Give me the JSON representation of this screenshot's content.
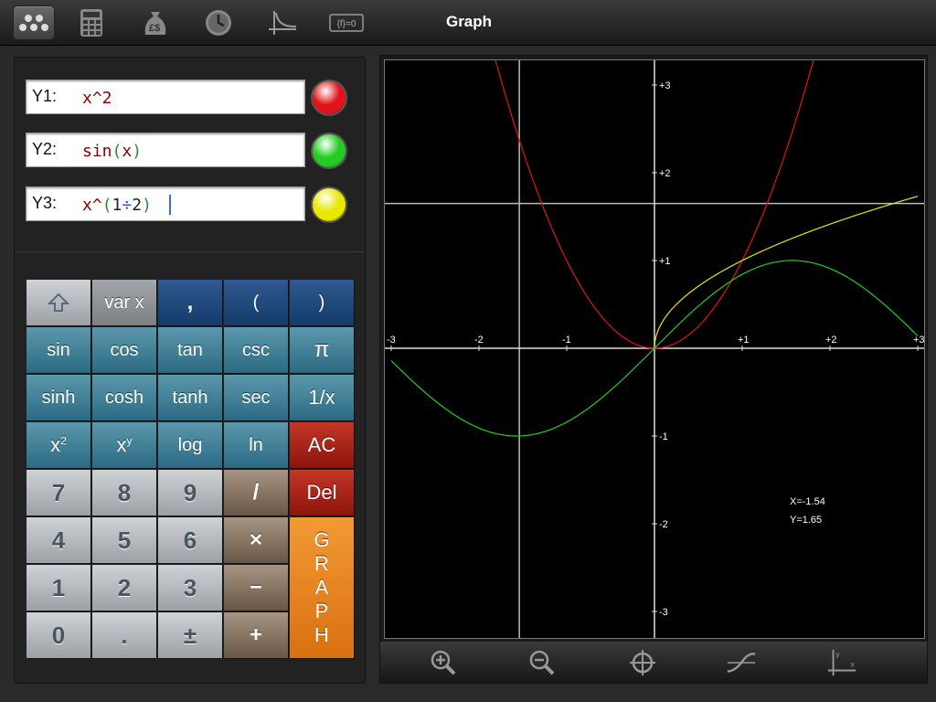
{
  "app": {
    "title": "Graph"
  },
  "toolbar": {
    "icons": [
      "apps-icon",
      "calculator-icon",
      "currency-exchange-icon",
      "clock-icon",
      "graph-icon",
      "equation-solver-icon"
    ],
    "solver_label": "{f}=0"
  },
  "equations": [
    {
      "label": "Y1:",
      "parts": [
        {
          "t": "x^2",
          "c": "r"
        }
      ],
      "color": "#e0141a"
    },
    {
      "label": "Y2:",
      "parts": [
        {
          "t": "sin",
          "c": "r"
        },
        {
          "t": "(",
          "c": "g"
        },
        {
          "t": "x",
          "c": "r"
        },
        {
          "t": ")",
          "c": "g"
        }
      ],
      "color": "#22cc22"
    },
    {
      "label": "Y3:",
      "parts": [
        {
          "t": "x^",
          "c": "r"
        },
        {
          "t": "(",
          "c": "g"
        },
        {
          "t": "1",
          "c": "b"
        },
        {
          "t": "÷",
          "c": "bl"
        },
        {
          "t": "2",
          "c": "b"
        },
        {
          "t": ")",
          "c": "g"
        }
      ],
      "color": "#e8e800"
    }
  ],
  "keypad": {
    "row1": [
      "⇧",
      "var x",
      ",",
      "(",
      ")"
    ],
    "row2": [
      "sin",
      "cos",
      "tan",
      "csc",
      "π"
    ],
    "row3": [
      "sinh",
      "cosh",
      "tanh",
      "sec",
      "1/x"
    ],
    "row4": [
      "x",
      "x",
      "log",
      "ln",
      "AC"
    ],
    "row4_sup": [
      "2",
      "y"
    ],
    "row5": [
      "7",
      "8",
      "9",
      "/",
      "Del"
    ],
    "row6": [
      "4",
      "5",
      "6",
      "×"
    ],
    "row7": [
      "1",
      "2",
      "3",
      "−"
    ],
    "row8": [
      "0",
      ".",
      "±",
      "+"
    ],
    "graph_key": [
      "G",
      "R",
      "A",
      "P",
      "H"
    ]
  },
  "graph": {
    "x_ticks": [
      "-3",
      "-2",
      "-1",
      "+1",
      "+2",
      "+3"
    ],
    "y_ticks": [
      "+3",
      "+2",
      "+1",
      "-1",
      "-2",
      "-3"
    ],
    "readout_x": "X=-1.54",
    "readout_y": "Y=1.65",
    "xlim": [
      -3,
      3
    ],
    "trace_x": -1.54,
    "trace_y": 1.65,
    "colors": {
      "y1": "#e0141a",
      "y2": "#22cc22",
      "y3": "#e8e800"
    }
  },
  "graph_toolbar": [
    "zoom-in-icon",
    "zoom-out-icon",
    "crosshair-icon",
    "curve-trace-icon",
    "axes-icon"
  ]
}
